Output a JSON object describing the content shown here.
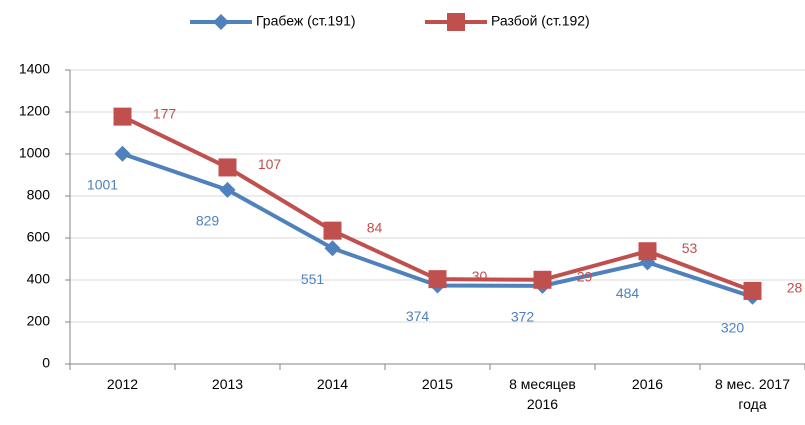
{
  "chart_data": {
    "type": "line",
    "stacked": true,
    "categories": [
      "2012",
      "2013",
      "2014",
      "2015",
      "8 месяцев 2016",
      "2016",
      "8 мес. 2017 года"
    ],
    "series": [
      {
        "name": "Грабеж (ст.191)",
        "color": "#4f81bd",
        "marker": "diamond",
        "values": [
          1001,
          829,
          551,
          374,
          372,
          484,
          320
        ]
      },
      {
        "name": "Разбой (ст.192)",
        "color": "#c0504d",
        "marker": "square",
        "values": [
          177,
          107,
          84,
          30,
          29,
          53,
          28
        ]
      }
    ],
    "ylim": [
      0,
      1400
    ],
    "yticks": [
      0,
      200,
      400,
      600,
      800,
      1000,
      1200,
      1400
    ],
    "grid": true,
    "legend": "top"
  }
}
